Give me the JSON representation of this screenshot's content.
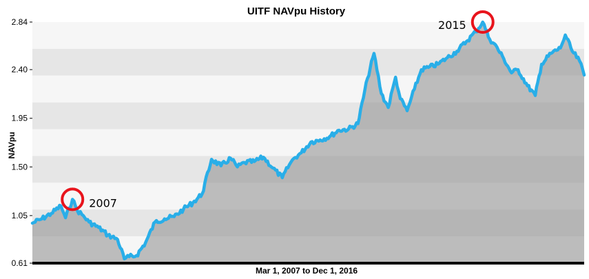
{
  "chart_data": {
    "type": "area",
    "title": "UITF NAVpu History",
    "xlabel": "Mar 1, 2007 to Dec 1, 2016",
    "ylabel": "NAVpu",
    "ylim": [
      0.61,
      2.84
    ],
    "y_ticks": [
      "2.84",
      "2.40",
      "1.95",
      "1.50",
      "1.05",
      "0.61"
    ],
    "x_range": [
      "2007-03-01",
      "2016-12-01"
    ],
    "grid": "alternating horizontal bands",
    "colors": {
      "line": "#29aee8",
      "fill": "#8c8c8c",
      "band_dark": "#e6e6e6",
      "band_light": "#f6f6f6",
      "highlight_circle": "#e8141c"
    },
    "series": [
      {
        "x": [
          "2007-03-01",
          "2007-05-01",
          "2007-07-01",
          "2007-09-01",
          "2007-10-01",
          "2007-11-15",
          "2007-12-15",
          "2008-01-15",
          "2008-03-01",
          "2008-05-01",
          "2008-07-01",
          "2008-09-01",
          "2008-10-15",
          "2008-11-15",
          "2009-01-01",
          "2009-03-01",
          "2009-05-01",
          "2009-07-01",
          "2009-09-01",
          "2009-11-01",
          "2010-01-01",
          "2010-03-01",
          "2010-05-01",
          "2010-07-01",
          "2010-09-01",
          "2010-10-15",
          "2010-12-01",
          "2011-02-01",
          "2011-04-01",
          "2011-06-01",
          "2011-08-01",
          "2011-09-15",
          "2011-10-15",
          "2011-12-01",
          "2012-02-01",
          "2012-04-01",
          "2012-06-01",
          "2012-08-01",
          "2012-10-01",
          "2012-12-01",
          "2013-02-01",
          "2013-03-15",
          "2013-05-01",
          "2013-06-15",
          "2013-08-01",
          "2013-09-01",
          "2013-10-15",
          "2013-12-01",
          "2014-01-15",
          "2014-03-01",
          "2014-05-01",
          "2014-07-01",
          "2014-09-01",
          "2014-11-01",
          "2015-01-01",
          "2015-02-15",
          "2015-04-01",
          "2015-05-01",
          "2015-07-01",
          "2015-08-20",
          "2015-10-01",
          "2015-12-01",
          "2016-01-20",
          "2016-03-01",
          "2016-05-01",
          "2016-07-01",
          "2016-08-01",
          "2016-09-15",
          "2016-11-01",
          "2016-12-01"
        ],
        "values": [
          0.98,
          1.02,
          1.07,
          1.14,
          1.03,
          1.2,
          1.1,
          1.06,
          0.99,
          0.94,
          0.87,
          0.83,
          0.65,
          0.67,
          0.68,
          0.8,
          0.99,
          1.02,
          1.04,
          1.11,
          1.17,
          1.25,
          1.57,
          1.51,
          1.58,
          1.5,
          1.54,
          1.55,
          1.59,
          1.49,
          1.4,
          1.52,
          1.58,
          1.63,
          1.73,
          1.75,
          1.78,
          1.84,
          1.85,
          1.9,
          2.32,
          2.55,
          2.18,
          2.05,
          2.33,
          2.13,
          2.02,
          2.22,
          2.4,
          2.42,
          2.45,
          2.51,
          2.57,
          2.66,
          2.75,
          2.84,
          2.68,
          2.64,
          2.5,
          2.37,
          2.4,
          2.25,
          2.16,
          2.45,
          2.55,
          2.6,
          2.72,
          2.57,
          2.48,
          2.35
        ]
      }
    ],
    "annotations": [
      {
        "label": "2007",
        "x": "2007-11-15",
        "y": 1.2
      },
      {
        "label": "2015",
        "x": "2015-02-15",
        "y": 2.84
      }
    ]
  }
}
